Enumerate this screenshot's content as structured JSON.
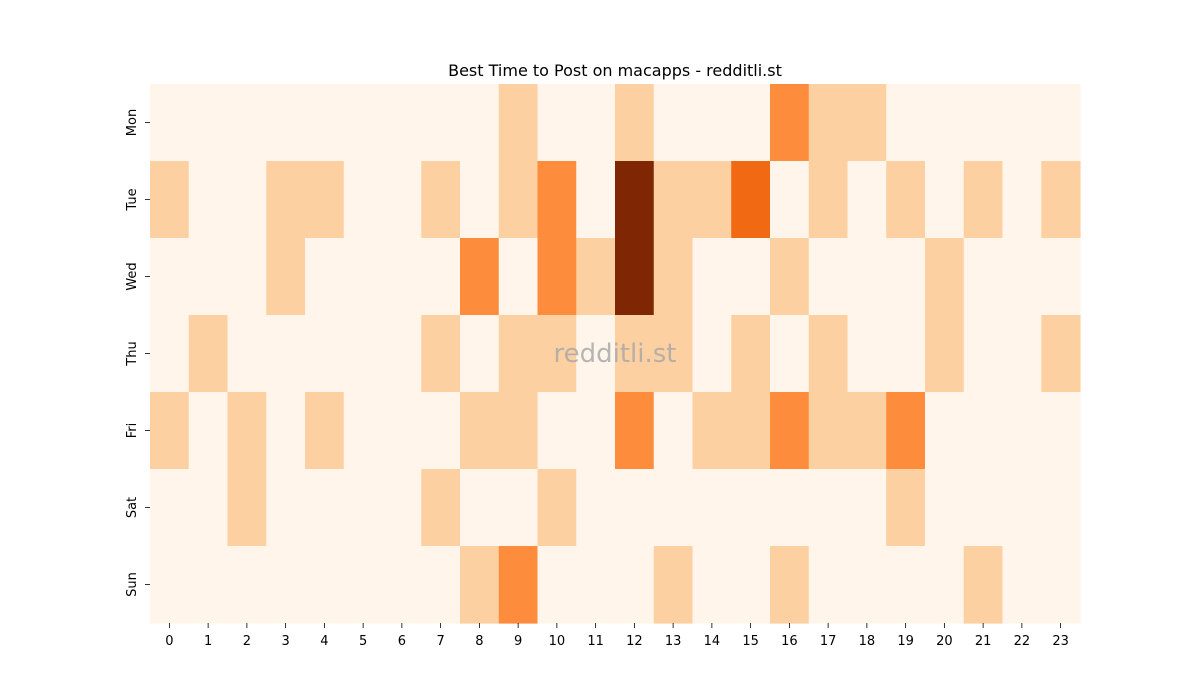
{
  "chart_data": {
    "type": "heatmap",
    "title": "Best Time to Post on macapps - redditli.st",
    "watermark": "redditli.st",
    "xlabel": "",
    "ylabel": "",
    "x_categories": [
      "0",
      "1",
      "2",
      "3",
      "4",
      "5",
      "6",
      "7",
      "8",
      "9",
      "10",
      "11",
      "12",
      "13",
      "14",
      "15",
      "16",
      "17",
      "18",
      "19",
      "20",
      "21",
      "22",
      "23"
    ],
    "y_categories": [
      "Mon",
      "Tue",
      "Wed",
      "Thu",
      "Fri",
      "Sat",
      "Sun"
    ],
    "values": [
      [
        0,
        0,
        0,
        0,
        0,
        0,
        0,
        0,
        0,
        1,
        0,
        0,
        1,
        0,
        0,
        0,
        3,
        1,
        1,
        0,
        0,
        0,
        0,
        0
      ],
      [
        1,
        0,
        0,
        1,
        1,
        0,
        0,
        1,
        0,
        1,
        3,
        0,
        6,
        1,
        1,
        4,
        0,
        1,
        0,
        1,
        0,
        1,
        0,
        1
      ],
      [
        0,
        0,
        0,
        1,
        0,
        0,
        0,
        0,
        3,
        0,
        3,
        1,
        6,
        1,
        0,
        0,
        1,
        0,
        0,
        0,
        1,
        0,
        0,
        0
      ],
      [
        0,
        1,
        0,
        0,
        0,
        0,
        0,
        1,
        0,
        1,
        1,
        0,
        1,
        1,
        0,
        1,
        0,
        1,
        0,
        0,
        1,
        0,
        0,
        1
      ],
      [
        1,
        0,
        1,
        0,
        1,
        0,
        0,
        0,
        1,
        1,
        0,
        0,
        3,
        0,
        1,
        1,
        3,
        1,
        1,
        3,
        0,
        0,
        0,
        0
      ],
      [
        0,
        0,
        1,
        0,
        0,
        0,
        0,
        1,
        0,
        0,
        1,
        0,
        0,
        0,
        0,
        0,
        0,
        0,
        0,
        1,
        0,
        0,
        0,
        0
      ],
      [
        0,
        0,
        0,
        0,
        0,
        0,
        0,
        0,
        1,
        3,
        0,
        0,
        0,
        1,
        0,
        0,
        1,
        0,
        0,
        0,
        0,
        1,
        0,
        0
      ]
    ],
    "value_range": [
      0,
      6
    ],
    "colormap": "Oranges",
    "level_colors": [
      "#fff5eb",
      "#fdd0a2",
      "#fdae6b",
      "#fd8d3c",
      "#f16913",
      "#d94801",
      "#7f2704"
    ],
    "colorbar": false,
    "grid": false
  }
}
